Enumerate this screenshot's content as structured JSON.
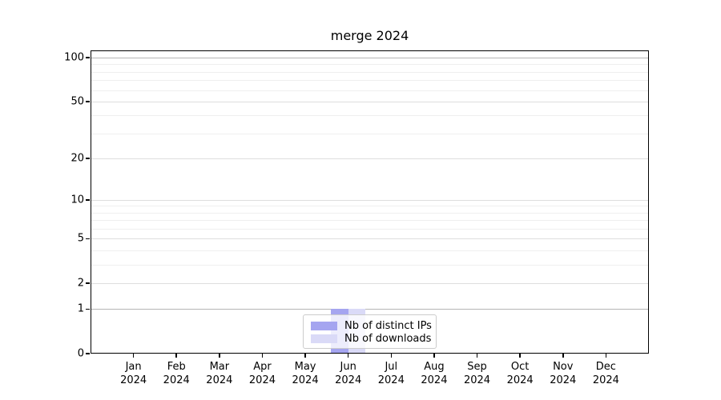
{
  "chart_data": {
    "type": "bar",
    "title": "merge 2024",
    "categories": [
      {
        "month": "Jan",
        "year": "2024"
      },
      {
        "month": "Feb",
        "year": "2024"
      },
      {
        "month": "Mar",
        "year": "2024"
      },
      {
        "month": "Apr",
        "year": "2024"
      },
      {
        "month": "May",
        "year": "2024"
      },
      {
        "month": "Jun",
        "year": "2024"
      },
      {
        "month": "Jul",
        "year": "2024"
      },
      {
        "month": "Aug",
        "year": "2024"
      },
      {
        "month": "Sep",
        "year": "2024"
      },
      {
        "month": "Oct",
        "year": "2024"
      },
      {
        "month": "Nov",
        "year": "2024"
      },
      {
        "month": "Dec",
        "year": "2024"
      }
    ],
    "series": [
      {
        "name": "Nb of distinct IPs",
        "color": "#a5a5f0",
        "values": [
          0,
          0,
          0,
          0,
          0,
          1,
          0,
          0,
          0,
          0,
          0,
          0
        ]
      },
      {
        "name": "Nb of downloads",
        "color": "#dadaf7",
        "values": [
          0,
          0,
          0,
          0,
          0,
          1,
          0,
          0,
          0,
          0,
          0,
          0
        ]
      }
    ],
    "y_axis": {
      "scale": "log1p",
      "major_ticks": [
        0,
        1,
        2,
        5,
        10,
        20,
        50,
        100
      ],
      "minor_gridlines": [
        3,
        4,
        6,
        7,
        8,
        9,
        30,
        40,
        60,
        70,
        80,
        90
      ],
      "ylim": [
        0,
        112
      ]
    },
    "x_axis": {
      "label_format": "month over year"
    },
    "legend": {
      "position": "lower center"
    },
    "grid": true,
    "colors": {
      "spine": "#000000",
      "grid_major_strong": "#b5b5b5",
      "grid_major": "#dedede",
      "grid_minor": "#efefef",
      "legend_border": "#cccccc"
    }
  }
}
